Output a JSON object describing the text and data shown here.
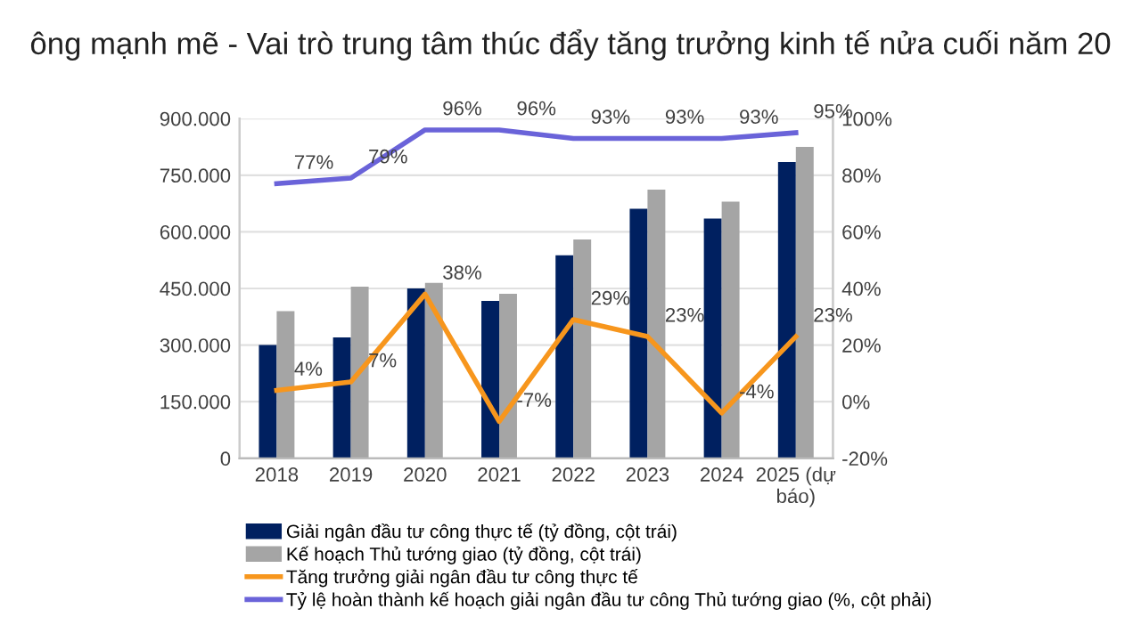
{
  "chart_data": {
    "type": "bar",
    "title": "ông mạnh mẽ - Vai trò trung tâm thúc đẩy tăng trưởng kinh tế nửa cuối năm 20",
    "categories": [
      "2018",
      "2019",
      "2020",
      "2021",
      "2022",
      "2023",
      "2024",
      "2025 (dự\nbáo)"
    ],
    "series": [
      {
        "name": "Giải ngân đầu tư công thực tế (tỷ đồng, cột trái)",
        "color": "#002060",
        "values": [
          300000,
          320000,
          450000,
          417000,
          538000,
          661000,
          635000,
          785000
        ]
      },
      {
        "name": "Kế hoạch Thủ tướng giao (tỷ đồng, cột trái)",
        "color": "#a5a5a5",
        "values": [
          390000,
          455000,
          465000,
          436000,
          580000,
          712000,
          680000,
          825000
        ]
      },
      {
        "name": "Tăng trưởng giải ngân đầu tư công thực tế",
        "type": "line",
        "axis": "y2",
        "color": "#f7961d",
        "values": [
          4,
          7,
          38,
          -7,
          29,
          23,
          -4,
          23
        ],
        "value_labels": [
          "4%",
          "7%",
          "38%",
          "-7%",
          "29%",
          "23%",
          "-4%",
          "23%"
        ]
      },
      {
        "name": "Tỷ lệ hoàn thành kế hoạch giải ngân đầu tư công Thủ tướng giao (%, cột phải)",
        "type": "line",
        "axis": "y2",
        "color": "#6a63d9",
        "values": [
          77,
          79,
          96,
          96,
          93,
          93,
          93,
          95
        ],
        "value_labels": [
          "77%",
          "79%",
          "96%",
          "96%",
          "93%",
          "93%",
          "93%",
          "95%"
        ]
      }
    ],
    "ylim": [
      0,
      900000
    ],
    "yticks": [
      {
        "value": 0,
        "label": "0"
      },
      {
        "value": 150000,
        "label": "150.000"
      },
      {
        "value": 300000,
        "label": "300.000"
      },
      {
        "value": 450000,
        "label": "450.000"
      },
      {
        "value": 600000,
        "label": "600.000"
      },
      {
        "value": 750000,
        "label": "750.000"
      },
      {
        "value": 900000,
        "label": "900.000"
      }
    ],
    "y2lim": [
      -20,
      100
    ],
    "y2ticks": [
      {
        "value": -20,
        "label": "-20%"
      },
      {
        "value": 0,
        "label": "0%"
      },
      {
        "value": 20,
        "label": "20%"
      },
      {
        "value": 40,
        "label": "40%"
      },
      {
        "value": 60,
        "label": "60%"
      },
      {
        "value": 80,
        "label": "80%"
      },
      {
        "value": 100,
        "label": "100%"
      }
    ],
    "grid": "y",
    "legend": "bottom"
  }
}
